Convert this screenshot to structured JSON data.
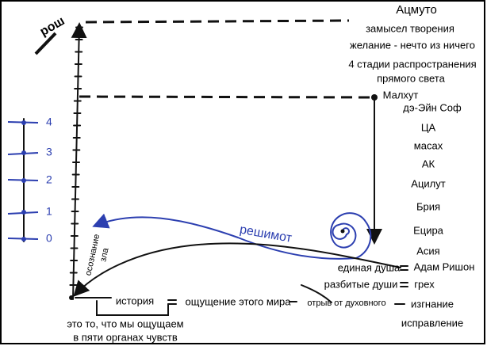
{
  "axis_label": "рош",
  "right_column": [
    "Ацмуто",
    "замысел творения",
    "желание - нечто из ничего",
    "4 стадии распространения",
    "прямого света",
    "Малхут",
    "дэ-Эйн Соф",
    "ЦА",
    "масах",
    "АК",
    "Ацилут",
    "Брия",
    "Ецира",
    "Асия"
  ],
  "souls": {
    "single": "единая душа",
    "adam": "Адам Ришон",
    "broken": "разбитые души",
    "sin": "грех"
  },
  "bottom_row": {
    "history": "история",
    "world": "ощущение этого мира",
    "detachment": "отрыв от духовного",
    "exile": "изгнание",
    "correction": "исправление"
  },
  "note": [
    "это то, что мы ощущаем",
    "в пяти органах чувств"
  ],
  "reshimot": "решимот",
  "awareness": [
    "осознание",
    "зла"
  ],
  "scale": [
    "0",
    "1",
    "2",
    "3",
    "4"
  ]
}
